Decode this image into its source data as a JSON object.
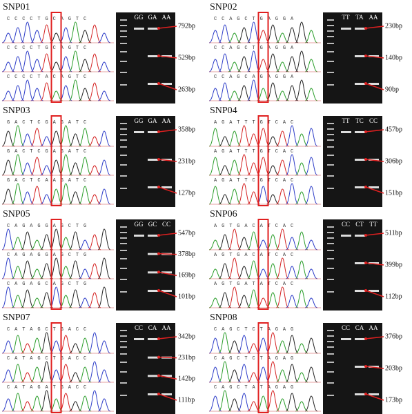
{
  "panels": [
    {
      "title": "SNP01",
      "sequences": [
        "CCCCTGCAGTC",
        "CCCCTGCAGTC",
        "CCCCTACAGTC"
      ],
      "lanes": [
        "GG",
        "GA",
        "AA"
      ],
      "bands": [
        "792bp",
        "529bp",
        "263bp"
      ]
    },
    {
      "title": "SNP02",
      "sequences": [
        "CCAGCTGAGGA",
        "CCAGCTGAGGA",
        "CCAGCAGAGGA"
      ],
      "lanes": [
        "TT",
        "TA",
        "AA"
      ],
      "bands": [
        "230bp",
        "140bp",
        "90bp"
      ]
    },
    {
      "title": "SNP03",
      "sequences": [
        "GACTCGAGATC",
        "GACTCGAGATC",
        "GACTCAAGATC"
      ],
      "lanes": [
        "GG",
        "GA",
        "AA"
      ],
      "bands": [
        "358bp",
        "231bp",
        "127bp"
      ]
    },
    {
      "title": "SNP04",
      "sequences": [
        "AGATTTGTCAC",
        "AGATTTGTCAC",
        "AGATTCGTCAC"
      ],
      "lanes": [
        "TT",
        "TC",
        "CC"
      ],
      "bands": [
        "457bp",
        "306bp",
        "151bp"
      ]
    },
    {
      "title": "SNP05",
      "sequences": [
        "CAGAGGAGCTG",
        "CAGAGGAGCTG",
        "CAGAGCAGCTG"
      ],
      "lanes": [
        "GG",
        "GC",
        "CC"
      ],
      "bands": [
        "547bp",
        "378bp",
        "169bp",
        "101bp"
      ]
    },
    {
      "title": "SNP06",
      "sequences": [
        "AGTGACATCAC",
        "AGTGACATCAC",
        "AGTGATATCAC"
      ],
      "lanes": [
        "CC",
        "CT",
        "TT"
      ],
      "bands": [
        "511bp",
        "399bp",
        "112bp"
      ]
    },
    {
      "title": "SNP07",
      "sequences": [
        "CATAGCTGACC",
        "CATAGCTGACC",
        "CATAGATGACC"
      ],
      "lanes": [
        "CC",
        "CA",
        "AA"
      ],
      "bands": [
        "342bp",
        "231bp",
        "142bp",
        "111bp"
      ]
    },
    {
      "title": "SNP08",
      "sequences": [
        "CAGCTCTAGAG",
        "CAGCTCTAGAG",
        "CAGCTATAGAG"
      ],
      "lanes": [
        "CC",
        "CA",
        "AA"
      ],
      "bands": [
        "376bp",
        "203bp",
        "173bp"
      ]
    }
  ]
}
